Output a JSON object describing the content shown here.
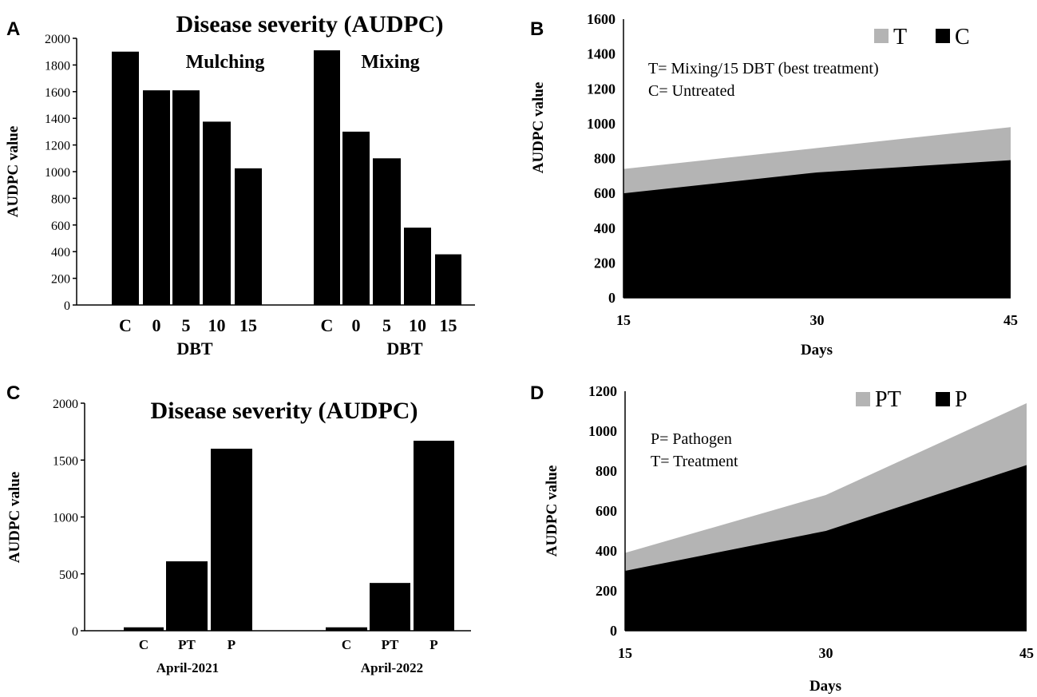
{
  "chart_data": [
    {
      "panel": "A",
      "type": "bar",
      "title": "Disease severity (AUDPC)",
      "ylabel": "AUDPC value",
      "ylim": [
        0,
        2000
      ],
      "yticks": [
        0,
        200,
        400,
        600,
        800,
        1000,
        1200,
        1400,
        1600,
        1800,
        2000
      ],
      "groups": [
        {
          "name": "Mulching",
          "xlabel": "DBT",
          "categories": [
            "C",
            "0",
            "5",
            "10",
            "15"
          ],
          "values": [
            1900,
            1610,
            1610,
            1375,
            1025
          ]
        },
        {
          "name": "Mixing",
          "xlabel": "DBT",
          "categories": [
            "C",
            "0",
            "5",
            "10",
            "15"
          ],
          "values": [
            1910,
            1300,
            1100,
            580,
            380
          ]
        }
      ]
    },
    {
      "panel": "B",
      "type": "area",
      "stacked": false,
      "xlabel": "Days",
      "ylabel": "AUDPC value",
      "x": [
        15,
        30,
        45
      ],
      "ylim": [
        0,
        1600
      ],
      "yticks": [
        0,
        200,
        400,
        600,
        800,
        1000,
        1200,
        1400,
        1600
      ],
      "series": [
        {
          "name": "T",
          "color": "#b4b4b4",
          "values": [
            740,
            860,
            980
          ]
        },
        {
          "name": "C",
          "color": "#000000",
          "values": [
            600,
            720,
            790
          ]
        }
      ],
      "annotations": [
        "T= Mixing/15  DBT (best treatment)",
        "C= Untreated"
      ]
    },
    {
      "panel": "C",
      "type": "bar",
      "title": "Disease severity (AUDPC)",
      "ylabel": "AUDPC value",
      "ylim": [
        0,
        2000
      ],
      "yticks": [
        0,
        500,
        1000,
        1500,
        2000
      ],
      "groups": [
        {
          "name": "April-2021",
          "categories": [
            "C",
            "PT",
            "P"
          ],
          "values": [
            30,
            610,
            1600
          ]
        },
        {
          "name": "April-2022",
          "categories": [
            "C",
            "PT",
            "P"
          ],
          "values": [
            30,
            420,
            1670
          ]
        }
      ]
    },
    {
      "panel": "D",
      "type": "area",
      "stacked": false,
      "xlabel": "Days",
      "ylabel": "AUDPC value",
      "x": [
        15,
        30,
        45
      ],
      "ylim": [
        0,
        1200
      ],
      "yticks": [
        0,
        200,
        400,
        600,
        800,
        1000,
        1200
      ],
      "series": [
        {
          "name": "PT",
          "color": "#b4b4b4",
          "values": [
            390,
            680,
            1140
          ]
        },
        {
          "name": "P",
          "color": "#000000",
          "values": [
            300,
            500,
            830
          ]
        }
      ],
      "annotations": [
        "P= Pathogen",
        "T= Treatment"
      ]
    }
  ]
}
